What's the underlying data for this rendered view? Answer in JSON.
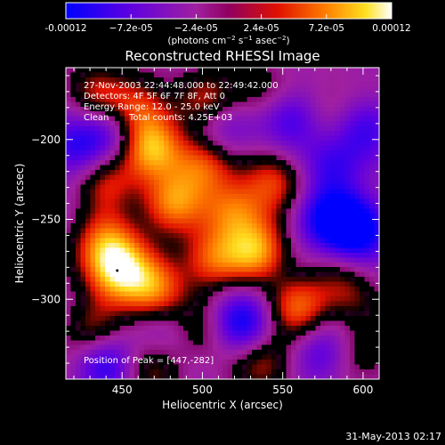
{
  "chart_data": {
    "type": "heatmap",
    "title": "Reconstructed RHESSI Image",
    "xlabel": "Heliocentric X (arcsec)",
    "ylabel": "Heliocentric Y (arcsec)",
    "xlim": [
      415,
      610
    ],
    "ylim": [
      -350,
      -155
    ],
    "xticks": [
      450,
      500,
      550,
      600
    ],
    "yticks": [
      -200,
      -250,
      -300
    ],
    "colorbar": {
      "range": [
        -0.00012,
        0.00012
      ],
      "tick_values": [
        -0.00012,
        -7.2e-05,
        -2.4e-05,
        2.4e-05,
        7.2e-05,
        0.00012
      ],
      "tick_labels": [
        "-0.00012",
        "−7.2e-05",
        "−2.4e-05",
        "2.4e-05",
        "7.2e-05",
        "0.00012"
      ],
      "unit_prefix": "(photons cm",
      "unit_sup1": "−2",
      "unit_mid": " s",
      "unit_sup2": "−1",
      "unit_mid2": " asec",
      "unit_sup3": "−2",
      "unit_suffix": ")"
    },
    "annotations": {
      "time_range": "27-Nov-2003 22:44:48.000 to 22:49:42.000",
      "detectors": "Detectors: 4F 5F 6F 7F 8F, Att 0",
      "energy": "Energy Range: 12.0 - 25.0 keV",
      "method": "Clean",
      "total_counts": "Total counts: 4.25E+03",
      "peak": "Position of Peak = [447,-282]"
    },
    "peak_position": [
      447,
      -282
    ],
    "hot_regions": [
      {
        "x": 432,
        "y": -170,
        "level": 0.45
      },
      {
        "x": 460,
        "y": -180,
        "level": 0.7
      },
      {
        "x": 505,
        "y": -175,
        "level": 0.5
      },
      {
        "x": 535,
        "y": -170,
        "level": 0.35
      },
      {
        "x": 468,
        "y": -205,
        "level": 0.85
      },
      {
        "x": 500,
        "y": -215,
        "level": 0.75
      },
      {
        "x": 440,
        "y": -225,
        "level": 0.55
      },
      {
        "x": 480,
        "y": -240,
        "level": 0.8
      },
      {
        "x": 520,
        "y": -245,
        "level": 0.75
      },
      {
        "x": 545,
        "y": -225,
        "level": 0.6
      },
      {
        "x": 580,
        "y": -180,
        "level": 0.35
      },
      {
        "x": 440,
        "y": -265,
        "level": 0.7
      },
      {
        "x": 447,
        "y": -282,
        "level": 1.0
      },
      {
        "x": 470,
        "y": -295,
        "level": 0.8
      },
      {
        "x": 505,
        "y": -275,
        "level": 0.7
      },
      {
        "x": 535,
        "y": -270,
        "level": 0.85
      },
      {
        "x": 560,
        "y": -305,
        "level": 0.7
      },
      {
        "x": 590,
        "y": -295,
        "level": 0.45
      },
      {
        "x": 495,
        "y": -320,
        "level": 0.6
      },
      {
        "x": 430,
        "y": -320,
        "level": 0.45
      },
      {
        "x": 540,
        "y": -340,
        "level": 0.55
      },
      {
        "x": 600,
        "y": -335,
        "level": 0.4
      },
      {
        "x": 470,
        "y": -345,
        "level": 0.4
      }
    ],
    "cold_regions": [
      {
        "x": 595,
        "y": -255,
        "level": -1.0
      },
      {
        "x": 555,
        "y": -185,
        "level": -0.55
      },
      {
        "x": 580,
        "y": -215,
        "level": -0.55
      },
      {
        "x": 420,
        "y": -205,
        "level": -0.6
      },
      {
        "x": 525,
        "y": -315,
        "level": -0.7
      },
      {
        "x": 575,
        "y": -250,
        "level": -0.55
      },
      {
        "x": 440,
        "y": -340,
        "level": -0.55
      },
      {
        "x": 485,
        "y": -320,
        "level": -0.5
      },
      {
        "x": 575,
        "y": -335,
        "level": -0.5
      },
      {
        "x": 600,
        "y": -190,
        "level": -0.5
      },
      {
        "x": 445,
        "y": -195,
        "level": -0.45
      },
      {
        "x": 515,
        "y": -195,
        "level": -0.45
      }
    ]
  },
  "footer": {
    "date": "31-May-2013 02:17"
  }
}
